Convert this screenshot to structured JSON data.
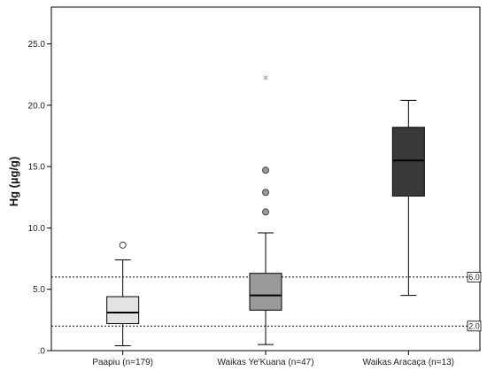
{
  "chart_data": {
    "type": "boxplot",
    "ylabel": "Hg (µg/g)",
    "xlabel": "",
    "ylim": [
      0,
      28
    ],
    "y_ticks": [
      0,
      5,
      10,
      15,
      20,
      25
    ],
    "y_tick_labels": [
      ".0",
      "5.0",
      "10.0",
      "15.0",
      "20.0",
      "25.0"
    ],
    "categories": [
      "Paapiu (n=179)",
      "Waikas Ye'Kuana (n=47)",
      "Waikas Aracaça (n=13)"
    ],
    "series": [
      {
        "category": "Paapiu (n=179)",
        "min": 0.4,
        "q1": 2.2,
        "median": 3.1,
        "q3": 4.4,
        "max": 7.4,
        "outliers": [
          {
            "value": 8.6,
            "kind": "circle"
          }
        ],
        "color": "#e3e3e3"
      },
      {
        "category": "Waikas Ye'Kuana (n=47)",
        "min": 0.5,
        "q1": 3.3,
        "median": 4.5,
        "q3": 6.3,
        "max": 9.6,
        "outliers": [
          {
            "value": 11.3,
            "kind": "circle"
          },
          {
            "value": 12.9,
            "kind": "circle"
          },
          {
            "value": 14.7,
            "kind": "circle"
          },
          {
            "value": 22.1,
            "kind": "star"
          }
        ],
        "color": "#9a9a9a"
      },
      {
        "category": "Waikas Aracaça (n=13)",
        "min": 4.5,
        "q1": 12.6,
        "median": 15.5,
        "q3": 18.2,
        "max": 20.4,
        "outliers": [],
        "color": "#3a3a3a"
      }
    ],
    "reference_lines": [
      {
        "value": 6.0,
        "label": "6.0"
      },
      {
        "value": 2.0,
        "label": "2.0"
      }
    ],
    "grid": false,
    "legend": "none"
  }
}
